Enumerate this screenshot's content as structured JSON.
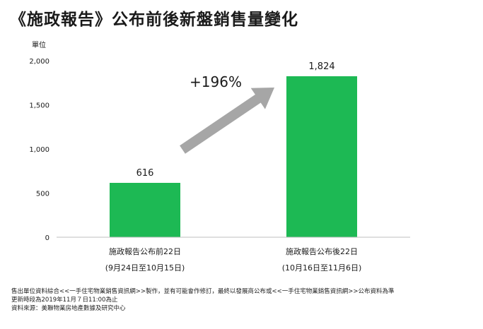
{
  "title": "《施政報告》公布前後新盤銷售量變化",
  "chart_data": {
    "type": "bar",
    "ylabel": "單位",
    "ylim": [
      0,
      2000
    ],
    "yticks": [
      0,
      500,
      1000,
      1500,
      2000
    ],
    "ytick_labels": [
      "0",
      "500",
      "1,000",
      "1,500",
      "2,000"
    ],
    "categories": [
      {
        "line1": "施政報告公布前22日",
        "line2": "(9月24日至10月15日)"
      },
      {
        "line1": "施政報告公布後22日",
        "line2": "(10月16日至11月6日)"
      }
    ],
    "values": [
      616,
      1824
    ],
    "value_labels": [
      "616",
      "1,824"
    ],
    "annotation": "+196%",
    "colors": {
      "bar": "#1db954",
      "arrow": "#a6a6a6",
      "axis": "#bfbfbf"
    },
    "grid": false
  },
  "footnote": {
    "line1": "售出單位資料綜合<<一手住宅物業銷售資訊網>>製作，並有可能會作修訂，最終以發展商公布或<<一手住宅物業銷售資訊網>>公布資料為準",
    "line2": "更新時段為2019年11月７日11:00為止",
    "line3": "資料來源：美聯物業房地產數據及研究中心"
  }
}
